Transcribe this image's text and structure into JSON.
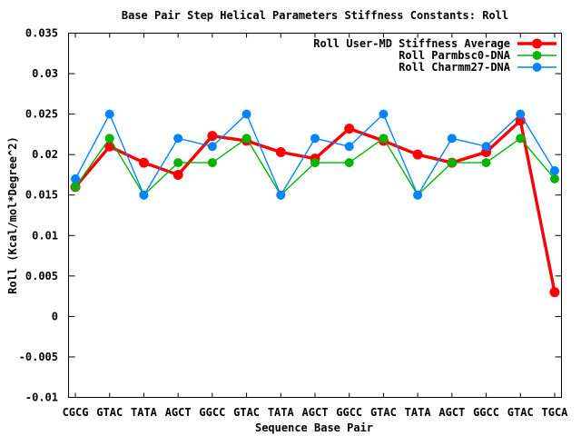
{
  "chart_data": {
    "type": "line",
    "title": "Base Pair Step Helical Parameters Stiffness Constants: Roll",
    "xlabel": "Sequence Base Pair",
    "ylabel": "Roll (Kcal/mol*Degree^2)",
    "categories": [
      "CGCG",
      "GTAC",
      "TATA",
      "AGCT",
      "GGCC",
      "GTAC",
      "TATA",
      "AGCT",
      "GGCC",
      "GTAC",
      "TATA",
      "AGCT",
      "GGCC",
      "GTAC",
      "TGCA"
    ],
    "series": [
      {
        "name": "Roll User-MD Stiffness Average",
        "color": "#ff0000",
        "line_width": 3.4,
        "marker_radius": 5.5,
        "values": [
          0.016,
          0.021,
          0.019,
          0.0175,
          0.0223,
          0.0217,
          0.0203,
          0.0195,
          0.0232,
          0.0217,
          0.02,
          0.019,
          0.0203,
          0.0242,
          0.003
        ]
      },
      {
        "name": "Roll Parmbsc0-DNA",
        "color": "#00b400",
        "line_width": 1.4,
        "marker_radius": 5,
        "values": [
          0.016,
          0.022,
          0.015,
          0.019,
          0.019,
          0.022,
          0.015,
          0.019,
          0.019,
          0.022,
          0.015,
          0.019,
          0.019,
          0.022,
          0.017
        ]
      },
      {
        "name": "Roll Charmm27-DNA",
        "color": "#0084ff",
        "line_width": 1.4,
        "marker_radius": 5,
        "values": [
          0.017,
          0.025,
          0.015,
          0.022,
          0.021,
          0.025,
          0.015,
          0.022,
          0.021,
          0.025,
          0.015,
          0.022,
          0.021,
          0.025,
          0.018
        ]
      }
    ],
    "ylim": [
      -0.01,
      0.035
    ],
    "yticks": [
      -0.01,
      -0.005,
      0,
      0.005,
      0.01,
      0.015,
      0.02,
      0.025,
      0.03,
      0.035
    ],
    "ytick_labels": [
      "-0.01",
      "-0.005",
      "0",
      "0.005",
      "0.01",
      "0.015",
      "0.02",
      "0.025",
      "0.03",
      "0.035"
    ],
    "grid": false,
    "legend_position": "top-right",
    "axis_color": "#000000",
    "text_color": "#000000",
    "background": "#ffffff"
  }
}
